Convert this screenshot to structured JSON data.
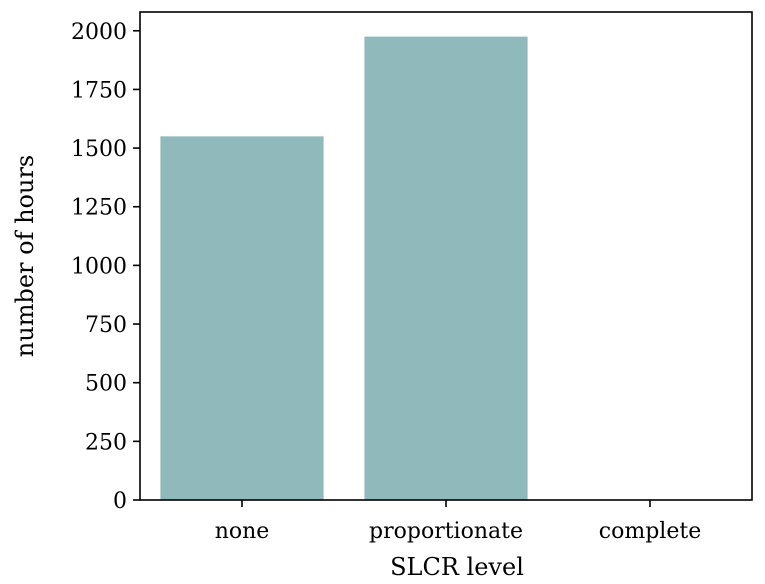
{
  "chart_data": {
    "type": "bar",
    "title": "",
    "xlabel": "SLCR level",
    "ylabel": "number of hours",
    "categories": [
      "none",
      "proportionate",
      "complete"
    ],
    "values": [
      1550,
      1975,
      0
    ],
    "ylim": [
      0,
      2080
    ],
    "yticks": [
      0,
      250,
      500,
      750,
      1000,
      1250,
      1500,
      1750,
      2000
    ],
    "ytick_labels": [
      "0",
      "250",
      "500",
      "750",
      "1000",
      "1250",
      "1500",
      "1750",
      "2000"
    ],
    "bar_color": "#8fb9bb",
    "grid": false,
    "legend": "none"
  }
}
